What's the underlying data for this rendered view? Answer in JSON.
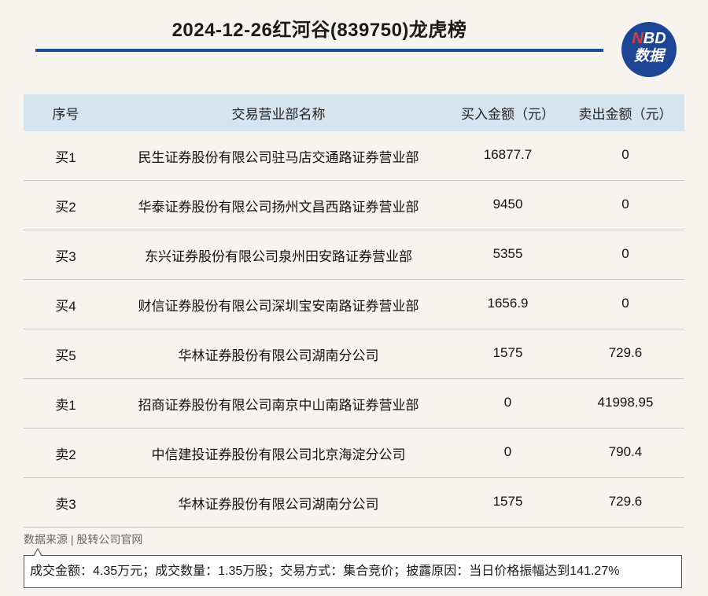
{
  "title": "2024-12-26红河谷(839750)龙虎榜",
  "logo": {
    "line1_n": "N",
    "line1_rest": "BD",
    "line2": "数据"
  },
  "colors": {
    "accent": "#1d4e9a",
    "header_bg": "#d6e4ef",
    "logo_bg": "#1c4595",
    "logo_n": "#e03a3a",
    "page_bg": "#f7f4f0"
  },
  "table": {
    "headers": [
      "序号",
      "交易营业部名称",
      "买入金额（元）",
      "卖出金额（元）"
    ],
    "rows": [
      {
        "seq": "买1",
        "name": "民生证券股份有限公司驻马店交通路证券营业部",
        "buy": "16877.7",
        "sell": "0"
      },
      {
        "seq": "买2",
        "name": "华泰证券股份有限公司扬州文昌西路证券营业部",
        "buy": "9450",
        "sell": "0"
      },
      {
        "seq": "买3",
        "name": "东兴证券股份有限公司泉州田安路证券营业部",
        "buy": "5355",
        "sell": "0"
      },
      {
        "seq": "买4",
        "name": "财信证券股份有限公司深圳宝安南路证券营业部",
        "buy": "1656.9",
        "sell": "0"
      },
      {
        "seq": "买5",
        "name": "华林证券股份有限公司湖南分公司",
        "buy": "1575",
        "sell": "729.6"
      },
      {
        "seq": "卖1",
        "name": "招商证券股份有限公司南京中山南路证券营业部",
        "buy": "0",
        "sell": "41998.95"
      },
      {
        "seq": "卖2",
        "name": "中信建投证券股份有限公司北京海淀分公司",
        "buy": "0",
        "sell": "790.4"
      },
      {
        "seq": "卖3",
        "name": "华林证券股份有限公司湖南分公司",
        "buy": "1575",
        "sell": "729.6"
      }
    ]
  },
  "source": "数据来源 | 股转公司官网",
  "note": "成交金额：4.35万元；成交数量：1.35万股；交易方式：集合竞价；披露原因：当日价格振幅达到141.27%"
}
